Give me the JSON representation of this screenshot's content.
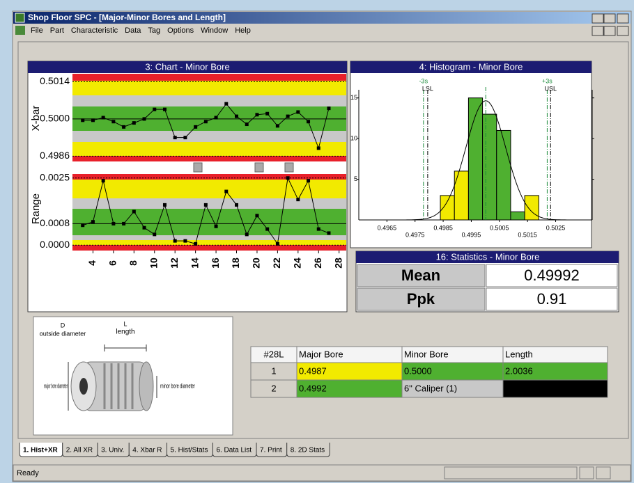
{
  "window": {
    "title": "Shop Floor SPC - [Major-Minor Bores and Length]",
    "menu": [
      "File",
      "Part",
      "Characteristic",
      "Data",
      "Tag",
      "Options",
      "Window",
      "Help"
    ],
    "status": "Ready"
  },
  "control_chart": {
    "type": "line",
    "title": "3: Chart - Minor Bore",
    "x": [
      3,
      4,
      5,
      6,
      7,
      8,
      9,
      10,
      11,
      12,
      13,
      14,
      15,
      16,
      17,
      18,
      19,
      20,
      21,
      22,
      23,
      24,
      25,
      26,
      27
    ],
    "xlim": [
      2,
      28.7
    ],
    "xticks": [
      4,
      6,
      8,
      10,
      12,
      14,
      16,
      18,
      20,
      22,
      24,
      26,
      28
    ],
    "xbar": {
      "label": "X-bar",
      "color": "#000000",
      "values": [
        0.49995,
        0.49995,
        0.50005,
        0.4999,
        0.4997,
        0.49985,
        0.5,
        0.50036,
        0.50036,
        0.4993,
        0.4993,
        0.4997,
        0.4999,
        0.50005,
        0.50057,
        0.5001,
        0.4998,
        0.50016,
        0.5002,
        0.49974,
        0.5001,
        0.50026,
        0.4999,
        0.4989,
        0.5004
      ],
      "ylim": [
        0.4984,
        0.5017
      ],
      "yticks": [
        0.5014,
        {
          "value": 0.5,
          "label": "0.5000"
        },
        0.4986
      ]
    },
    "range": {
      "label": "Range",
      "color": "#000000",
      "values": [
        0.00074,
        0.00087,
        0.0024,
        0.0008,
        0.0008,
        0.00125,
        0.00065,
        0.0004,
        0.0015,
        0.00016,
        0.00016,
        5e-05,
        0.0015,
        0.0007,
        0.002,
        0.0015,
        0.0004,
        0.0011,
        0.0006,
        5e-05,
        0.0025,
        0.0017,
        0.0024,
        0.0006,
        0.00045
      ],
      "ylim": [
        -0.0002,
        0.00265
      ],
      "yticks": [
        0.0025,
        0.0008,
        {
          "value": 0,
          "label": "0.0000"
        }
      ]
    }
  },
  "histogram": {
    "type": "histogram",
    "title": "4: Histogram - Minor Bore",
    "bins": [
      0.4984,
      0.4989,
      0.4994,
      0.4999,
      0.5004,
      0.5009,
      0.5014,
      0.5019
    ],
    "counts": [
      3,
      6,
      15,
      13,
      11,
      1,
      3
    ],
    "colors": [
      "#f2ea00",
      "#f2ea00",
      "#4fb030",
      "#4fb030",
      "#4fb030",
      "#4fb030",
      "#f2ea00"
    ],
    "xlim": [
      0.4955,
      0.5038
    ],
    "xticks": [
      0.4965,
      0.4975,
      0.4985,
      0.4995,
      0.5005,
      0.5015,
      0.5025
    ],
    "ylim": [
      0,
      16
    ],
    "yticks": [
      5,
      10,
      15
    ],
    "limits": [
      {
        "label": "-3s",
        "value": 0.4978,
        "color": "#1a8a3a"
      },
      {
        "label": "LSL",
        "value": 0.49795,
        "color": "#000000"
      },
      {
        "label": "+3s",
        "value": 0.5022,
        "color": "#1a8a3a"
      },
      {
        "label": "USL",
        "value": 0.50232,
        "color": "#000000"
      }
    ]
  },
  "statistics": {
    "title": "16: Statistics - Minor Bore",
    "rows": [
      [
        "Mean",
        "0.49992"
      ],
      [
        "Ppk",
        "0.91"
      ]
    ]
  },
  "diagram": {
    "labels": [
      "D",
      "outside diameter",
      "L",
      "length",
      "major bore diameter",
      "minor bore diameter"
    ]
  },
  "table": {
    "header": [
      "#28L",
      "Major Bore",
      "Minor Bore",
      "Length"
    ],
    "rows": [
      [
        "1",
        "0.4987",
        "0.5000",
        "2.0036"
      ],
      [
        "2",
        "0.4992",
        "6\" Caliper (1)"
      ]
    ]
  },
  "tabs": [
    "1. Hist+XR",
    "2. All XR",
    "3. Univ.",
    "4. Xbar R",
    "5. Hist/Stats",
    "6. Data List",
    "7. Print",
    "8. 2D Stats"
  ]
}
